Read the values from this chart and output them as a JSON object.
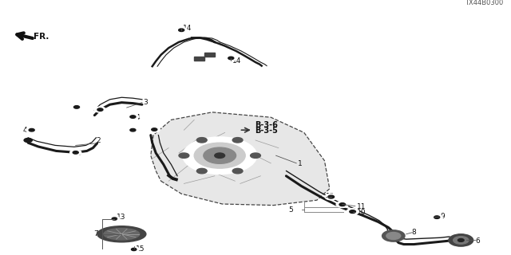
{
  "diagram_code": "TX44B0300",
  "bg_color": "#ffffff",
  "line_color": "#1a1a1a",
  "figsize": [
    6.4,
    3.2
  ],
  "dpi": 100,
  "tank_outline": {
    "x": [
      0.315,
      0.355,
      0.435,
      0.535,
      0.62,
      0.645,
      0.635,
      0.595,
      0.53,
      0.415,
      0.335,
      0.3,
      0.295,
      0.305,
      0.315
    ],
    "y": [
      0.29,
      0.24,
      0.2,
      0.195,
      0.215,
      0.26,
      0.37,
      0.48,
      0.54,
      0.56,
      0.53,
      0.47,
      0.39,
      0.33,
      0.29
    ]
  },
  "filler_pipe_outer": {
    "x": [
      0.56,
      0.59,
      0.63,
      0.67,
      0.71,
      0.74,
      0.76,
      0.77,
      0.775,
      0.775,
      0.78,
      0.79,
      0.81,
      0.84,
      0.875,
      0.895
    ],
    "y": [
      0.31,
      0.27,
      0.225,
      0.185,
      0.155,
      0.13,
      0.108,
      0.09,
      0.072,
      0.058,
      0.048,
      0.042,
      0.042,
      0.048,
      0.055,
      0.06
    ]
  },
  "filler_pipe_inner": {
    "x": [
      0.56,
      0.59,
      0.625,
      0.66,
      0.695,
      0.722,
      0.742,
      0.752,
      0.758,
      0.76,
      0.765,
      0.775,
      0.795,
      0.828,
      0.862,
      0.88
    ],
    "y": [
      0.33,
      0.292,
      0.248,
      0.21,
      0.18,
      0.156,
      0.135,
      0.118,
      0.102,
      0.088,
      0.078,
      0.068,
      0.062,
      0.065,
      0.068,
      0.072
    ]
  },
  "vent_pipe2_outer": {
    "x": [
      0.055,
      0.075,
      0.11,
      0.148,
      0.17,
      0.182,
      0.19
    ],
    "y": [
      0.44,
      0.425,
      0.408,
      0.402,
      0.408,
      0.42,
      0.438
    ]
  },
  "vent_pipe2_inner": {
    "x": [
      0.055,
      0.072,
      0.108,
      0.145,
      0.168,
      0.18,
      0.188
    ],
    "y": [
      0.46,
      0.446,
      0.43,
      0.424,
      0.43,
      0.442,
      0.46
    ]
  },
  "vent_pipe3_outer": {
    "x": [
      0.185,
      0.196,
      0.215,
      0.238,
      0.26,
      0.278
    ],
    "y": [
      0.548,
      0.57,
      0.59,
      0.598,
      0.595,
      0.59
    ]
  },
  "vent_pipe3_inner": {
    "x": [
      0.185,
      0.196,
      0.215,
      0.238,
      0.26,
      0.278
    ],
    "y": [
      0.568,
      0.59,
      0.61,
      0.618,
      0.615,
      0.61
    ]
  },
  "band_left": {
    "x": [
      0.298,
      0.305,
      0.315,
      0.33,
      0.35,
      0.37,
      0.39,
      0.405,
      0.415,
      0.42
    ],
    "y": [
      0.74,
      0.76,
      0.785,
      0.812,
      0.835,
      0.848,
      0.852,
      0.85,
      0.842,
      0.835
    ]
  },
  "band_right": {
    "x": [
      0.42,
      0.44,
      0.462,
      0.478,
      0.49,
      0.5,
      0.508,
      0.512
    ],
    "y": [
      0.835,
      0.82,
      0.8,
      0.782,
      0.768,
      0.756,
      0.748,
      0.742
    ]
  }
}
